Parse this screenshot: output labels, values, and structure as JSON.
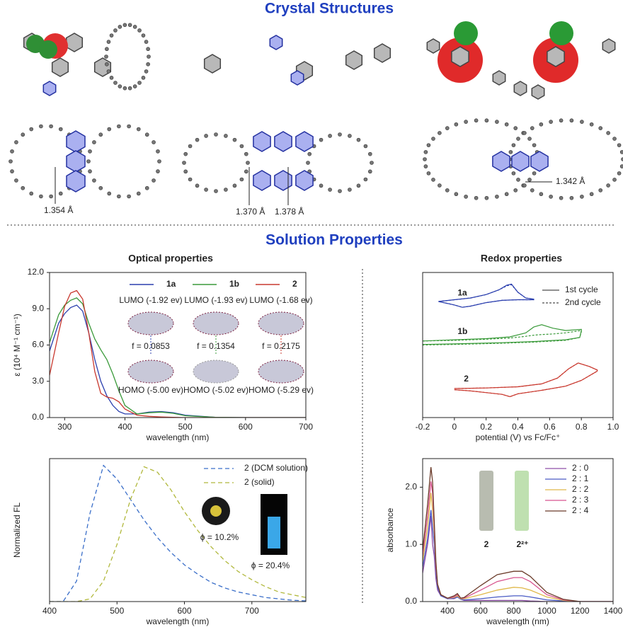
{
  "headings": {
    "crystal": "Crystal Structures",
    "solution": "Solution Properties"
  },
  "bond_lengths": [
    "1.354 Å",
    "1.370 Å",
    "1.378 Å",
    "1.342 Å"
  ],
  "chart_data": [
    {
      "type": "line",
      "title": "Optical properties",
      "xlabel": "wavelength (nm)",
      "ylabel": "ε (10⁴ M⁻¹ cm⁻¹)",
      "x": [
        275,
        290,
        300,
        310,
        320,
        330,
        340,
        350,
        360,
        370,
        380,
        390,
        400,
        420,
        440,
        460,
        480,
        500,
        550,
        600,
        700
      ],
      "xlim": [
        275,
        700
      ],
      "xticks": [
        300,
        400,
        500,
        600,
        700
      ],
      "ylim": [
        0,
        12
      ],
      "yticks": [
        {
          "value": 0,
          "label": "0.0"
        },
        {
          "value": 3,
          "label": "3.0"
        },
        {
          "value": 6,
          "label": "6.0"
        },
        {
          "value": 9,
          "label": "9.0"
        },
        {
          "value": 12,
          "label": "12.0"
        }
      ],
      "series": [
        {
          "name": "1a",
          "color": "#2b3fae",
          "values": [
            5.5,
            7.8,
            8.6,
            9.1,
            9.3,
            8.8,
            7.0,
            4.8,
            3.0,
            1.8,
            1.0,
            0.5,
            0.3,
            0.3,
            0.45,
            0.5,
            0.4,
            0.2,
            0.02,
            0,
            0
          ]
        },
        {
          "name": "1b",
          "color": "#3a9a3a",
          "values": [
            6.2,
            8.5,
            9.3,
            9.7,
            9.9,
            9.4,
            7.8,
            6.5,
            5.6,
            4.8,
            3.6,
            2.2,
            1.0,
            0.3,
            0.4,
            0.45,
            0.35,
            0.15,
            0.02,
            0,
            0
          ]
        },
        {
          "name": "2",
          "color": "#c9392f",
          "values": [
            3.5,
            7.0,
            9.2,
            10.3,
            10.5,
            9.8,
            7.0,
            3.8,
            2.0,
            1.7,
            1.6,
            1.3,
            0.7,
            0.2,
            0.1,
            0.05,
            0.02,
            0,
            0,
            0,
            0
          ]
        }
      ],
      "annotations": [
        "LUMO (-1.92 ev)",
        "LUMO (-1.93 ev)",
        "LUMO (-1.68 ev)",
        "f = 0.0853",
        "f = 0.1354",
        "f = 0.2175",
        "HOMO (-5.00 ev)",
        "HOMO (-5.02 ev)",
        "HOMO (-5.29 ev)"
      ]
    },
    {
      "type": "line",
      "title": "Redox properties",
      "xlabel": "potential (V) vs Fc/Fc⁺",
      "xlim": [
        -0.2,
        1.0
      ],
      "xticks": [
        -0.2,
        0,
        0.2,
        0.4,
        0.6,
        0.8,
        {
          "value": 1,
          "label": "1.0"
        }
      ],
      "ylim": [
        0,
        12.5
      ],
      "cycle_styles": [
        {
          "label": "1st cycle",
          "dash": "none"
        },
        {
          "label": "2nd cycle",
          "dash": "3 2"
        }
      ],
      "series": [
        {
          "name": "1a",
          "color": "#2b3fae",
          "cycles": [
            {
              "x": [
                -0.1,
                0,
                0.1,
                0.2,
                0.28,
                0.33,
                0.36,
                0.4,
                0.45,
                0.5,
                0.5,
                0.4,
                0.3,
                0.2,
                0.1,
                0.05,
                0,
                -0.1
              ],
              "values": [
                10,
                10.15,
                10.3,
                10.6,
                11.0,
                11.4,
                11.5,
                10.8,
                10.3,
                10.2,
                10.15,
                10.15,
                10.1,
                9.9,
                9.6,
                9.5,
                9.7,
                10.0
              ]
            },
            {
              "x": [
                -0.1,
                0,
                0.1,
                0.2,
                0.28,
                0.33,
                0.36,
                0.4,
                0.45,
                0.5,
                0.5,
                0.4,
                0.3,
                0.2,
                0.1,
                0.05,
                0,
                -0.1
              ],
              "values": [
                10,
                10.15,
                10.3,
                10.6,
                11.0,
                11.35,
                11.45,
                10.8,
                10.3,
                10.2,
                10.15,
                10.15,
                10.1,
                9.9,
                9.6,
                9.5,
                9.7,
                10.0
              ]
            }
          ]
        },
        {
          "name": "1b",
          "color": "#3a9a3a",
          "cycles": [
            {
              "x": [
                -0.2,
                0,
                0.2,
                0.35,
                0.45,
                0.5,
                0.55,
                0.62,
                0.7,
                0.8,
                0.8,
                0.79,
                0.7,
                0.5,
                0.3,
                0,
                -0.2
              ],
              "values": [
                6.6,
                6.7,
                6.8,
                6.95,
                7.3,
                7.8,
                8.0,
                7.7,
                7.5,
                7.6,
                7.5,
                6.9,
                6.7,
                6.55,
                6.45,
                6.35,
                6.3
              ]
            },
            {
              "x": [
                -0.2,
                0,
                0.2,
                0.35,
                0.45,
                0.5,
                0.55,
                0.62,
                0.7,
                0.8,
                0.8,
                0.79,
                0.7,
                0.5,
                0.3,
                0,
                -0.2
              ],
              "values": [
                6.6,
                6.65,
                6.75,
                6.85,
                7.0,
                7.1,
                7.15,
                7.2,
                7.3,
                7.5,
                7.4,
                6.9,
                6.65,
                6.5,
                6.4,
                6.3,
                6.25
              ]
            }
          ]
        },
        {
          "name": "2",
          "color": "#c9392f",
          "cycles": [
            {
              "x": [
                0,
                0.2,
                0.4,
                0.55,
                0.65,
                0.72,
                0.78,
                0.85,
                0.9,
                0.9,
                0.8,
                0.7,
                0.55,
                0.4,
                0.35,
                0.3,
                0.1,
                0
              ],
              "values": [
                2.5,
                2.55,
                2.65,
                2.9,
                3.4,
                4.2,
                4.7,
                4.4,
                4.1,
                4.0,
                3.2,
                2.7,
                2.35,
                2.05,
                1.8,
                2.0,
                2.3,
                2.4
              ]
            },
            {
              "x": [
                0,
                0.2,
                0.4,
                0.55,
                0.65,
                0.72,
                0.78,
                0.85,
                0.9,
                0.9,
                0.8,
                0.7,
                0.55,
                0.4,
                0.35,
                0.3,
                0.1,
                0
              ],
              "values": [
                2.5,
                2.55,
                2.65,
                2.9,
                3.4,
                4.2,
                4.7,
                4.4,
                4.1,
                4.0,
                3.2,
                2.7,
                2.35,
                2.05,
                1.8,
                2.0,
                2.3,
                2.4
              ]
            }
          ]
        }
      ]
    },
    {
      "type": "line",
      "xlabel": "wavelength (nm)",
      "ylabel": "Normalized FL",
      "x": [
        400,
        420,
        440,
        460,
        480,
        500,
        520,
        540,
        560,
        580,
        600,
        620,
        640,
        660,
        680,
        700,
        720,
        740,
        760,
        780
      ],
      "xlim": [
        400,
        780
      ],
      "xticks": [
        400,
        500,
        600,
        700
      ],
      "ylim": [
        0,
        1.05
      ],
      "dash": "6 4",
      "series": [
        {
          "name": "2 (DCM solution)",
          "color": "#3b6fc9",
          "values": [
            0,
            0,
            0.15,
            0.65,
            1.0,
            0.9,
            0.75,
            0.6,
            0.47,
            0.36,
            0.27,
            0.2,
            0.14,
            0.1,
            0.07,
            0.05,
            0.03,
            0.02,
            0.01,
            0.005
          ]
        },
        {
          "name": "2 (solid)",
          "color": "#b1b83c",
          "values": [
            0,
            0,
            0,
            0.02,
            0.15,
            0.42,
            0.75,
            0.99,
            0.95,
            0.82,
            0.66,
            0.52,
            0.4,
            0.3,
            0.22,
            0.16,
            0.11,
            0.07,
            0.05,
            0.03
          ]
        }
      ],
      "annotations": [
        "ϕ = 10.2%",
        "ϕ = 20.4%"
      ]
    },
    {
      "type": "line",
      "xlabel": "wavelength (nm)",
      "ylabel": "absorbance",
      "x": [
        250,
        280,
        300,
        310,
        320,
        330,
        340,
        360,
        400,
        440,
        460,
        480,
        500,
        600,
        700,
        800,
        850,
        900,
        1000,
        1100,
        1200,
        1400
      ],
      "xlim": [
        250,
        1400
      ],
      "xticks": [
        400,
        600,
        800,
        1000,
        1200,
        1400
      ],
      "ylim": [
        0,
        2.5
      ],
      "yticks": [
        {
          "value": 0,
          "label": "0.0"
        },
        {
          "value": 1,
          "label": "1.0"
        },
        {
          "value": 2,
          "label": "2.0"
        }
      ],
      "series": [
        {
          "name": "2 : 0",
          "color": "#8e4fa8",
          "values": [
            0.5,
            1.0,
            1.5,
            1.0,
            0.8,
            0.4,
            0.2,
            0.1,
            0.05,
            0.05,
            0.08,
            0.04,
            0.02,
            0.02,
            0.02,
            0.02,
            0.02,
            0.01,
            0,
            0,
            0,
            0
          ]
        },
        {
          "name": "2 : 1",
          "color": "#4a5bc4",
          "values": [
            0.6,
            1.1,
            1.6,
            1.3,
            1.0,
            0.5,
            0.25,
            0.1,
            0.05,
            0.06,
            0.08,
            0.04,
            0.03,
            0.05,
            0.08,
            0.1,
            0.1,
            0.08,
            0.03,
            0.01,
            0,
            0
          ]
        },
        {
          "name": "2 : 2",
          "color": "#e0b84a",
          "values": [
            0.7,
            1.3,
            1.9,
            1.6,
            1.2,
            0.6,
            0.3,
            0.12,
            0.06,
            0.07,
            0.1,
            0.05,
            0.05,
            0.12,
            0.2,
            0.25,
            0.24,
            0.2,
            0.08,
            0.02,
            0,
            0
          ]
        },
        {
          "name": "2 : 3",
          "color": "#d8558f",
          "values": [
            0.8,
            1.5,
            2.1,
            1.9,
            1.3,
            0.6,
            0.3,
            0.12,
            0.06,
            0.08,
            0.12,
            0.06,
            0.06,
            0.2,
            0.35,
            0.42,
            0.42,
            0.35,
            0.12,
            0.03,
            0,
            0
          ]
        },
        {
          "name": "2 : 4",
          "color": "#6b3b2a",
          "values": [
            0.9,
            1.7,
            2.35,
            2.1,
            1.4,
            0.7,
            0.3,
            0.12,
            0.06,
            0.1,
            0.14,
            0.06,
            0.07,
            0.28,
            0.47,
            0.53,
            0.53,
            0.44,
            0.16,
            0.04,
            0,
            0
          ]
        }
      ],
      "annotations": [
        "2",
        "2²⁺"
      ]
    }
  ]
}
